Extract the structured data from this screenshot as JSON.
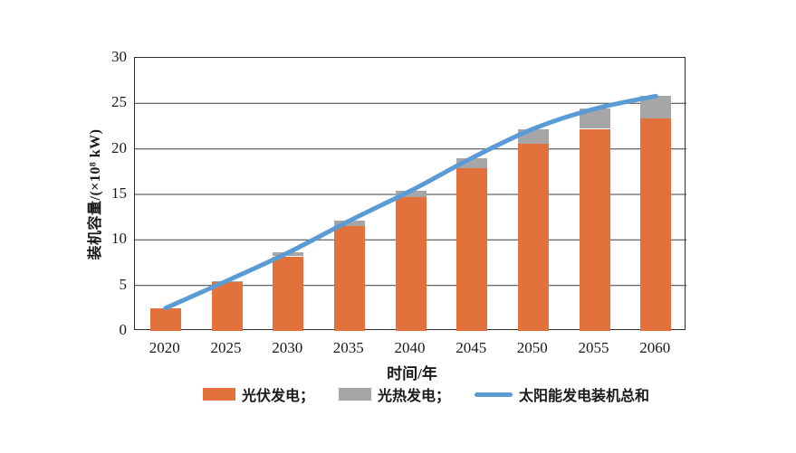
{
  "chart_data": {
    "type": "bar",
    "stacked": true,
    "title": "",
    "xlabel": "时间/年",
    "ylabel": "装机容量/(×10⁸ kW)",
    "ylim": [
      0,
      30
    ],
    "yticks": [
      0,
      5,
      10,
      15,
      20,
      25,
      30
    ],
    "grid": true,
    "legend_position": "bottom",
    "categories": [
      "2020",
      "2025",
      "2030",
      "2035",
      "2040",
      "2045",
      "2050",
      "2055",
      "2060"
    ],
    "series": [
      {
        "name": "光伏发电",
        "type": "bar",
        "color": "#E2713C",
        "values": [
          2.5,
          5.4,
          8.2,
          11.5,
          14.7,
          17.9,
          20.6,
          22.2,
          23.3
        ]
      },
      {
        "name": "光热发电",
        "type": "bar",
        "color": "#A6A6A6",
        "values": [
          0,
          0.1,
          0.4,
          0.6,
          0.7,
          1.1,
          1.6,
          2.2,
          2.5
        ]
      },
      {
        "name": "太阳能发电装机总和",
        "type": "line",
        "color": "#5B9BD5",
        "values": [
          2.5,
          5.5,
          8.6,
          12.1,
          15.4,
          19.0,
          22.2,
          24.4,
          25.8
        ]
      }
    ]
  },
  "axes": {
    "x_title": "时间/年",
    "y_title": "装机容量/(×10⁸ kW)"
  },
  "legend": {
    "items": [
      {
        "label": "光伏发电；",
        "color": "#E2713C",
        "marker": "rect"
      },
      {
        "label": "光热发电；",
        "color": "#A6A6A6",
        "marker": "rect"
      },
      {
        "label": "太阳能发电装机总和",
        "color": "#5B9BD5",
        "marker": "line"
      }
    ]
  },
  "colors": {
    "pv_bar": "#E2713C",
    "csp_bar": "#A6A6A6",
    "total_line": "#5B9BD5",
    "axis": "#2e2e2e",
    "gridline": "#3d3d3d",
    "background": "#ffffff"
  }
}
